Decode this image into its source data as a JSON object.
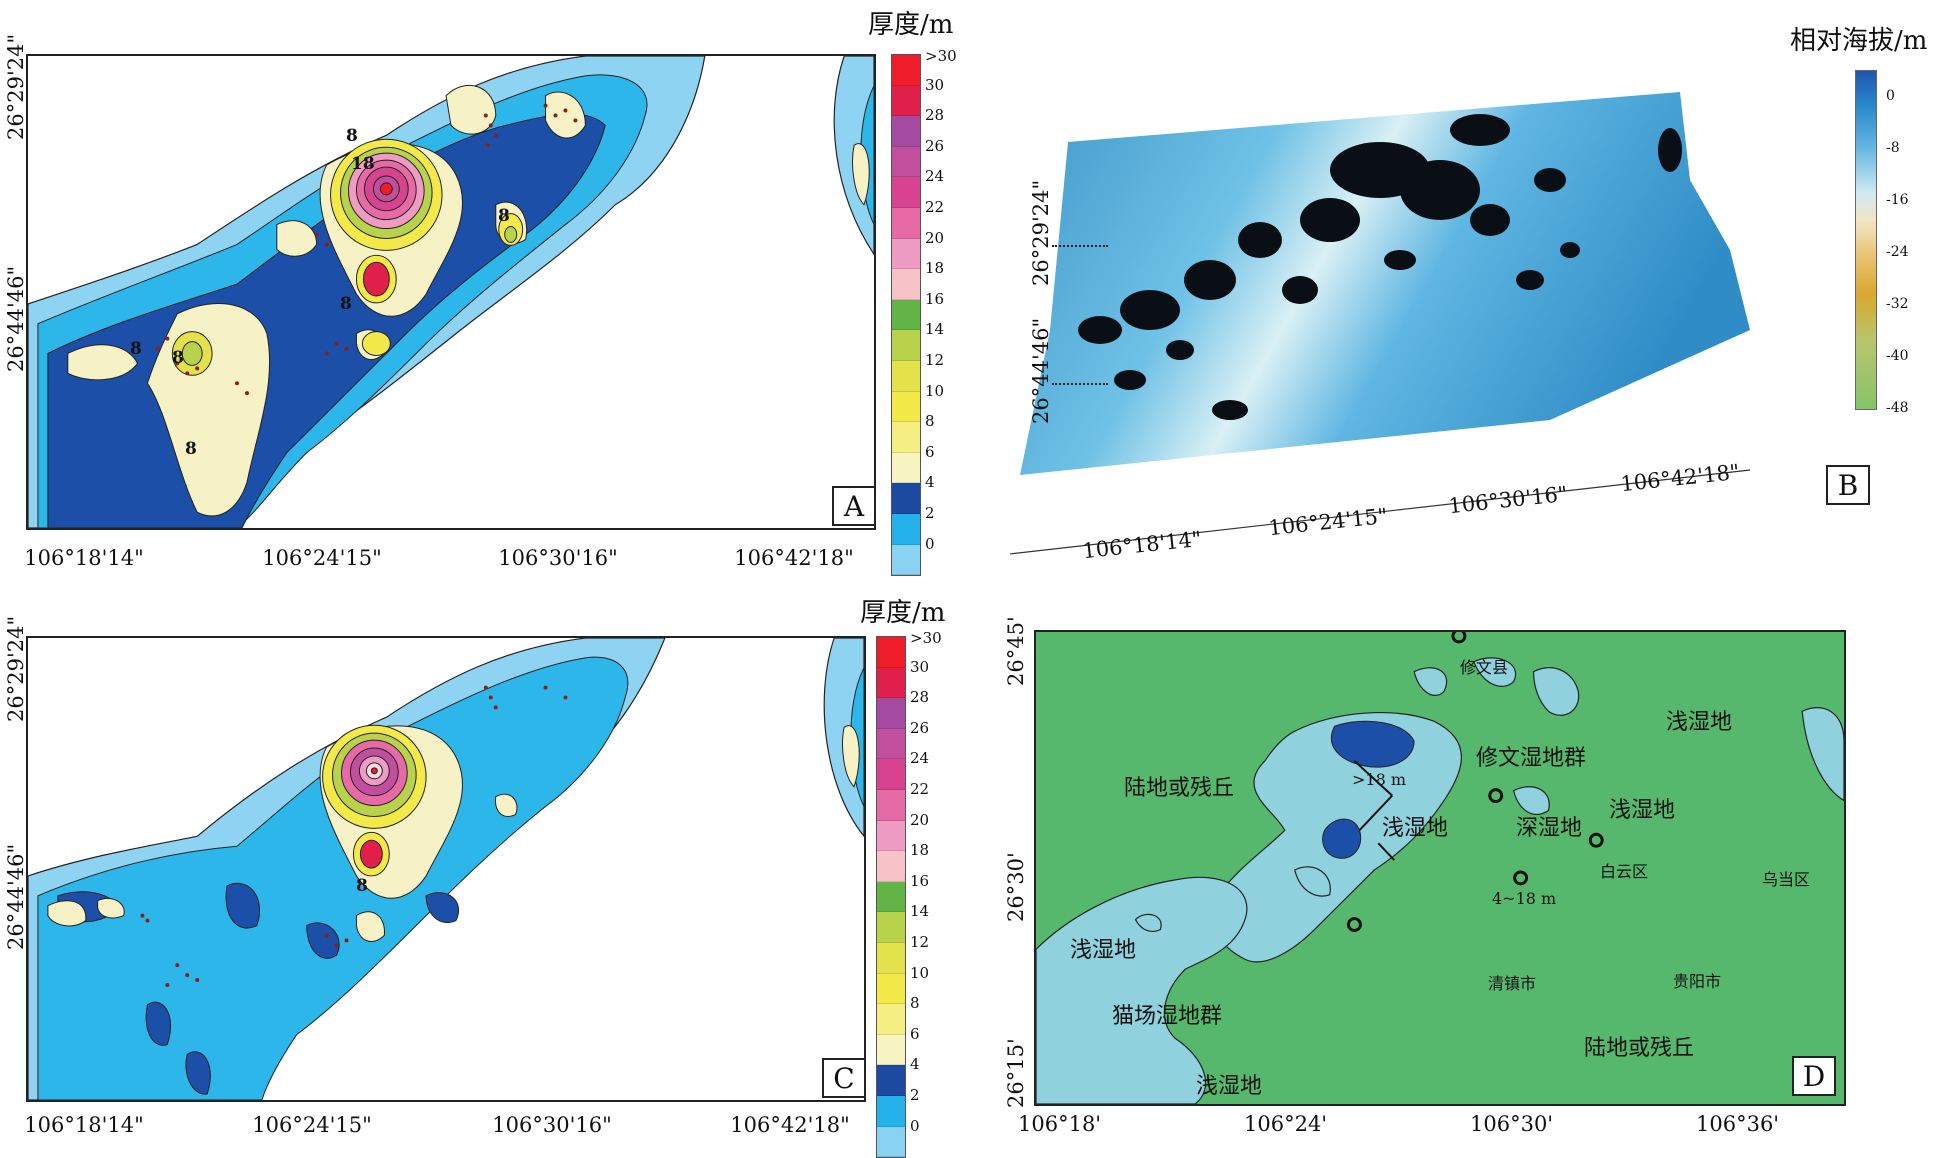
{
  "colors": {
    "light_blue": "#8fd3f2",
    "mid_blue": "#2cb6ea",
    "dark_blue": "#1c4fa8",
    "pale_yellow": "#f6f2c5",
    "green_land": "#55b86c",
    "teal_shallow": "#8fd1dd"
  },
  "legend_thickness": {
    "title": "厚度/m",
    "labels": [
      ">30",
      "30",
      "28",
      "26",
      "24",
      "22",
      "20",
      "18",
      "16",
      "14",
      "12",
      "10",
      "8",
      "6",
      "4",
      "2",
      "0"
    ],
    "colors": [
      "#ef1c2a",
      "#e0204b",
      "#a44aa0",
      "#c24f9e",
      "#d7438e",
      "#e56aa6",
      "#ef9cc4",
      "#f7c3c8",
      "#62b446",
      "#b9d24b",
      "#e4e24a",
      "#f3ea4a",
      "#f5ef83",
      "#f8f5c3",
      "#1b4aa0",
      "#25b2ea",
      "#8ad2f2"
    ]
  },
  "legend_relief": {
    "title": "相对海拔/m",
    "labels": [
      "0",
      "-8",
      "-16",
      "-24",
      "-32",
      "-40",
      "-48"
    ]
  },
  "panelA": {
    "letter": "A",
    "xticks": [
      "106°18'14\"",
      "106°24'15\"",
      "106°30'16\"",
      "106°42'18\""
    ],
    "yticks": [
      "26°29'24\"",
      "26°44'46\""
    ],
    "contour_labels": [
      "8",
      "18",
      "8",
      "8",
      "8",
      "8",
      "8"
    ]
  },
  "panelB": {
    "letter": "B",
    "xticks": [
      "106°18'14\"",
      "106°24'15\"",
      "106°30'16\"",
      "106°42'18\""
    ],
    "yticks": [
      "26°29'24\"",
      "26°44'46\""
    ]
  },
  "panelC": {
    "letter": "C",
    "xticks": [
      "106°18'14\"",
      "106°24'15\"",
      "106°30'16\"",
      "106°42'18\""
    ],
    "yticks": [
      "26°29'24\"",
      "26°44'46\""
    ],
    "contour_labels": [
      "8"
    ]
  },
  "panelD": {
    "letter": "D",
    "xticks": [
      "106°18'",
      "106°24'",
      "106°30'",
      "106°36'"
    ],
    "yticks": [
      "26°45'",
      "26°30'",
      "26°15'"
    ],
    "labels": {
      "land_left": "陆地或残丘",
      "land_right": "陆地或残丘",
      "xiuwen_county": "修文县",
      "shallow_top_right": "浅湿地",
      "xiuwen_group": "修文湿地群",
      "gt18": ">18 m",
      "shallow_mid": "浅湿地",
      "deep": "深湿地",
      "shallow_right": "浅湿地",
      "baiyun": "白云区",
      "wudang": "乌当区",
      "range_4_18": "4~18 m",
      "shallow_left": "浅湿地",
      "qingzhen": "清镇市",
      "guiyang": "贵阳市",
      "maochang": "猫场湿地群",
      "shallow_bottom": "浅湿地"
    }
  }
}
